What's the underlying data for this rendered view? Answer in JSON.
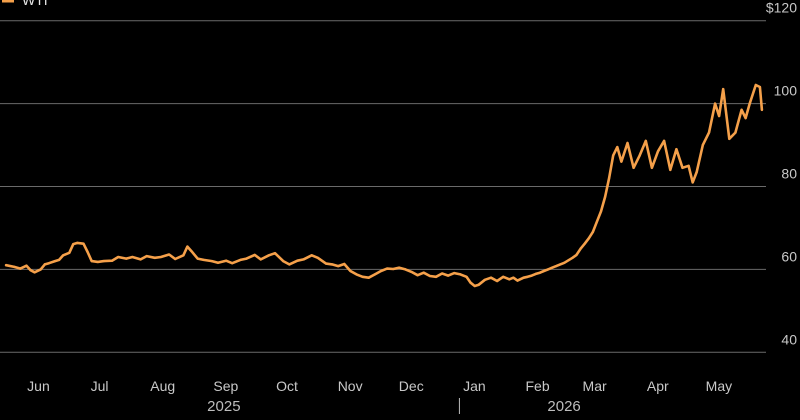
{
  "colors": {
    "background": "#000000",
    "series": "#f5a04a",
    "grid": "#6a6a6a",
    "text": "#c8c8c8"
  },
  "chart_data": {
    "type": "line",
    "legend": {
      "position": "top-left",
      "entries": [
        {
          "label": "WTI",
          "color": "#f5a04a"
        }
      ]
    },
    "y_axis": {
      "side": "right",
      "ylim": [
        35,
        125
      ],
      "ticks": [
        40,
        60,
        80,
        100,
        120
      ],
      "tick_labels": [
        "40",
        "60",
        "80",
        "100",
        "$120"
      ],
      "grid": true
    },
    "x_axis": {
      "type": "date",
      "xlim": [
        "2025-05-20",
        "2026-05-31"
      ],
      "ticks": [
        {
          "date": "2025-06-01",
          "label": "Jun"
        },
        {
          "date": "2025-07-01",
          "label": "Jul"
        },
        {
          "date": "2025-08-01",
          "label": "Aug"
        },
        {
          "date": "2025-09-01",
          "label": "Sep"
        },
        {
          "date": "2025-10-01",
          "label": "Oct"
        },
        {
          "date": "2025-11-01",
          "label": "Nov"
        },
        {
          "date": "2025-12-01",
          "label": "Dec"
        },
        {
          "date": "2026-01-01",
          "label": "Jan"
        },
        {
          "date": "2026-02-01",
          "label": "Feb"
        },
        {
          "date": "2026-03-01",
          "label": "Mar"
        },
        {
          "date": "2026-04-01",
          "label": "Apr"
        },
        {
          "date": "2026-05-01",
          "label": "May"
        }
      ],
      "year_labels": [
        {
          "date": "2025-09-01",
          "label": "2025"
        },
        {
          "date": "2026-02-15",
          "label": "2026"
        }
      ],
      "year_separator": "2026-01-01"
    },
    "series": [
      {
        "name": "WTI",
        "color": "#f5a04a",
        "points": [
          [
            "2025-05-23",
            61.0
          ],
          [
            "2025-05-27",
            60.6
          ],
          [
            "2025-05-30",
            60.2
          ],
          [
            "2025-06-02",
            60.9
          ],
          [
            "2025-06-04",
            59.8
          ],
          [
            "2025-06-06",
            59.3
          ],
          [
            "2025-06-09",
            60.0
          ],
          [
            "2025-06-11",
            61.2
          ],
          [
            "2025-06-13",
            61.5
          ],
          [
            "2025-06-16",
            62.0
          ],
          [
            "2025-06-18",
            62.3
          ],
          [
            "2025-06-20",
            63.4
          ],
          [
            "2025-06-23",
            64.0
          ],
          [
            "2025-06-25",
            66.1
          ],
          [
            "2025-06-27",
            66.4
          ],
          [
            "2025-06-30",
            66.2
          ],
          [
            "2025-07-02",
            64.2
          ],
          [
            "2025-07-04",
            62.0
          ],
          [
            "2025-07-07",
            61.8
          ],
          [
            "2025-07-10",
            62.0
          ],
          [
            "2025-07-14",
            62.1
          ],
          [
            "2025-07-17",
            63.0
          ],
          [
            "2025-07-21",
            62.6
          ],
          [
            "2025-07-24",
            63.0
          ],
          [
            "2025-07-28",
            62.4
          ],
          [
            "2025-07-31",
            63.2
          ],
          [
            "2025-08-04",
            62.8
          ],
          [
            "2025-08-07",
            63.0
          ],
          [
            "2025-08-11",
            63.6
          ],
          [
            "2025-08-14",
            62.5
          ],
          [
            "2025-08-18",
            63.4
          ],
          [
            "2025-08-20",
            65.5
          ],
          [
            "2025-08-22",
            64.4
          ],
          [
            "2025-08-25",
            62.6
          ],
          [
            "2025-08-28",
            62.3
          ],
          [
            "2025-09-01",
            62.0
          ],
          [
            "2025-09-04",
            61.6
          ],
          [
            "2025-09-08",
            62.1
          ],
          [
            "2025-09-11",
            61.5
          ],
          [
            "2025-09-15",
            62.3
          ],
          [
            "2025-09-18",
            62.6
          ],
          [
            "2025-09-22",
            63.5
          ],
          [
            "2025-09-25",
            62.4
          ],
          [
            "2025-09-29",
            63.4
          ],
          [
            "2025-10-02",
            63.9
          ],
          [
            "2025-10-06",
            62.0
          ],
          [
            "2025-10-09",
            61.2
          ],
          [
            "2025-10-13",
            62.1
          ],
          [
            "2025-10-16",
            62.4
          ],
          [
            "2025-10-20",
            63.4
          ],
          [
            "2025-10-23",
            62.8
          ],
          [
            "2025-10-27",
            61.4
          ],
          [
            "2025-10-30",
            61.2
          ],
          [
            "2025-11-02",
            60.8
          ],
          [
            "2025-11-05",
            61.3
          ],
          [
            "2025-11-08",
            59.6
          ],
          [
            "2025-11-11",
            58.8
          ],
          [
            "2025-11-14",
            58.2
          ],
          [
            "2025-11-17",
            58.0
          ],
          [
            "2025-11-20",
            58.8
          ],
          [
            "2025-11-23",
            59.6
          ],
          [
            "2025-11-26",
            60.2
          ],
          [
            "2025-11-29",
            60.1
          ],
          [
            "2025-12-02",
            60.4
          ],
          [
            "2025-12-05",
            60.0
          ],
          [
            "2025-12-08",
            59.4
          ],
          [
            "2025-12-11",
            58.6
          ],
          [
            "2025-12-14",
            59.2
          ],
          [
            "2025-12-17",
            58.4
          ],
          [
            "2025-12-20",
            58.2
          ],
          [
            "2025-12-23",
            59.0
          ],
          [
            "2025-12-26",
            58.5
          ],
          [
            "2025-12-29",
            59.1
          ],
          [
            "2026-01-01",
            58.8
          ],
          [
            "2026-01-04",
            58.2
          ],
          [
            "2026-01-06",
            56.8
          ],
          [
            "2026-01-08",
            56.0
          ],
          [
            "2026-01-10",
            56.3
          ],
          [
            "2026-01-13",
            57.5
          ],
          [
            "2026-01-16",
            58.0
          ],
          [
            "2026-01-19",
            57.2
          ],
          [
            "2026-01-22",
            58.2
          ],
          [
            "2026-01-25",
            57.6
          ],
          [
            "2026-01-27",
            58.0
          ],
          [
            "2026-01-29",
            57.3
          ],
          [
            "2026-02-01",
            58.0
          ],
          [
            "2026-02-03",
            58.2
          ],
          [
            "2026-02-05",
            58.5
          ],
          [
            "2026-02-07",
            58.9
          ],
          [
            "2026-02-09",
            59.2
          ],
          [
            "2026-02-11",
            59.6
          ],
          [
            "2026-02-13",
            60.0
          ],
          [
            "2026-02-15",
            60.4
          ],
          [
            "2026-02-17",
            60.8
          ],
          [
            "2026-02-19",
            61.2
          ],
          [
            "2026-02-21",
            61.6
          ],
          [
            "2026-02-23",
            62.2
          ],
          [
            "2026-02-25",
            62.8
          ],
          [
            "2026-02-27",
            63.5
          ],
          [
            "2026-03-01",
            65.0
          ],
          [
            "2026-03-03",
            66.2
          ],
          [
            "2026-03-05",
            67.5
          ],
          [
            "2026-03-07",
            69.0
          ],
          [
            "2026-03-09",
            71.5
          ],
          [
            "2026-03-11",
            74.0
          ],
          [
            "2026-03-13",
            77.5
          ],
          [
            "2026-03-15",
            82.0
          ],
          [
            "2026-03-17",
            87.5
          ],
          [
            "2026-03-19",
            89.5
          ],
          [
            "2026-03-21",
            86.0
          ],
          [
            "2026-03-24",
            90.5
          ],
          [
            "2026-03-27",
            84.5
          ],
          [
            "2026-03-30",
            87.5
          ],
          [
            "2026-04-02",
            91.0
          ],
          [
            "2026-04-05",
            84.5
          ],
          [
            "2026-04-08",
            88.5
          ],
          [
            "2026-04-11",
            91.0
          ],
          [
            "2026-04-14",
            84.0
          ],
          [
            "2026-04-17",
            89.0
          ],
          [
            "2026-04-20",
            84.5
          ],
          [
            "2026-04-23",
            85.0
          ],
          [
            "2026-04-25",
            81.0
          ],
          [
            "2026-04-27",
            83.5
          ],
          [
            "2026-04-30",
            90.0
          ],
          [
            "2026-05-03",
            93.0
          ],
          [
            "2026-05-06",
            100.0
          ],
          [
            "2026-05-08",
            97.0
          ],
          [
            "2026-05-10",
            103.5
          ],
          [
            "2026-05-13",
            91.5
          ],
          [
            "2026-05-16",
            93.0
          ],
          [
            "2026-05-19",
            98.5
          ],
          [
            "2026-05-21",
            96.5
          ],
          [
            "2026-05-23",
            100.0
          ],
          [
            "2026-05-26",
            104.5
          ],
          [
            "2026-05-28",
            104.0
          ],
          [
            "2026-05-29",
            98.5
          ]
        ]
      }
    ]
  }
}
